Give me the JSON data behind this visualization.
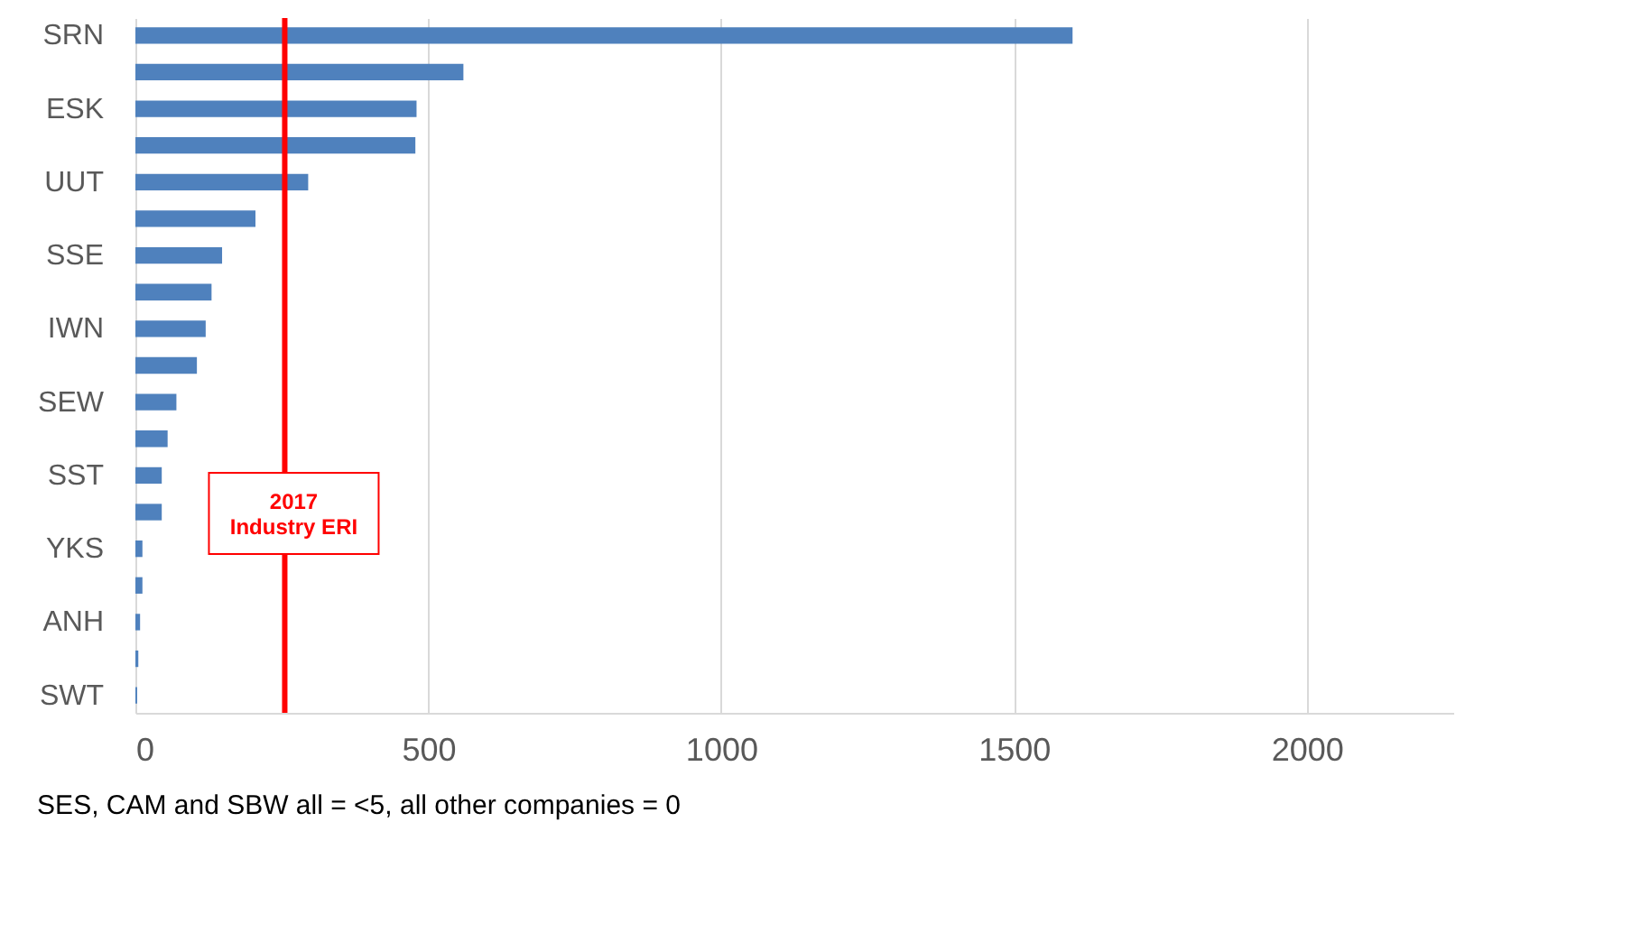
{
  "chart_data": {
    "type": "bar",
    "orientation": "horizontal",
    "categories": [
      "SRN",
      null,
      "ESK",
      null,
      "UUT",
      null,
      "SSE",
      null,
      "IWN",
      null,
      "SEW",
      null,
      "SST",
      null,
      "YKS",
      null,
      "ANH",
      null,
      "SWT"
    ],
    "values": [
      1600,
      560,
      480,
      478,
      295,
      205,
      148,
      130,
      120,
      105,
      70,
      55,
      45,
      45,
      12,
      12,
      8,
      5,
      3
    ],
    "color": "#4f81bd",
    "xlim": [
      0,
      2250
    ],
    "xticks": [
      0,
      500,
      1000,
      1500,
      2000
    ],
    "grid": "x",
    "ref_lines": [
      {
        "axis": "x",
        "value": 255,
        "label": "2017\nIndustry ERI",
        "color": "#ff0000"
      }
    ],
    "annotations": [
      "SES, CAM and SBW all = <5, all other companies = 0"
    ]
  }
}
